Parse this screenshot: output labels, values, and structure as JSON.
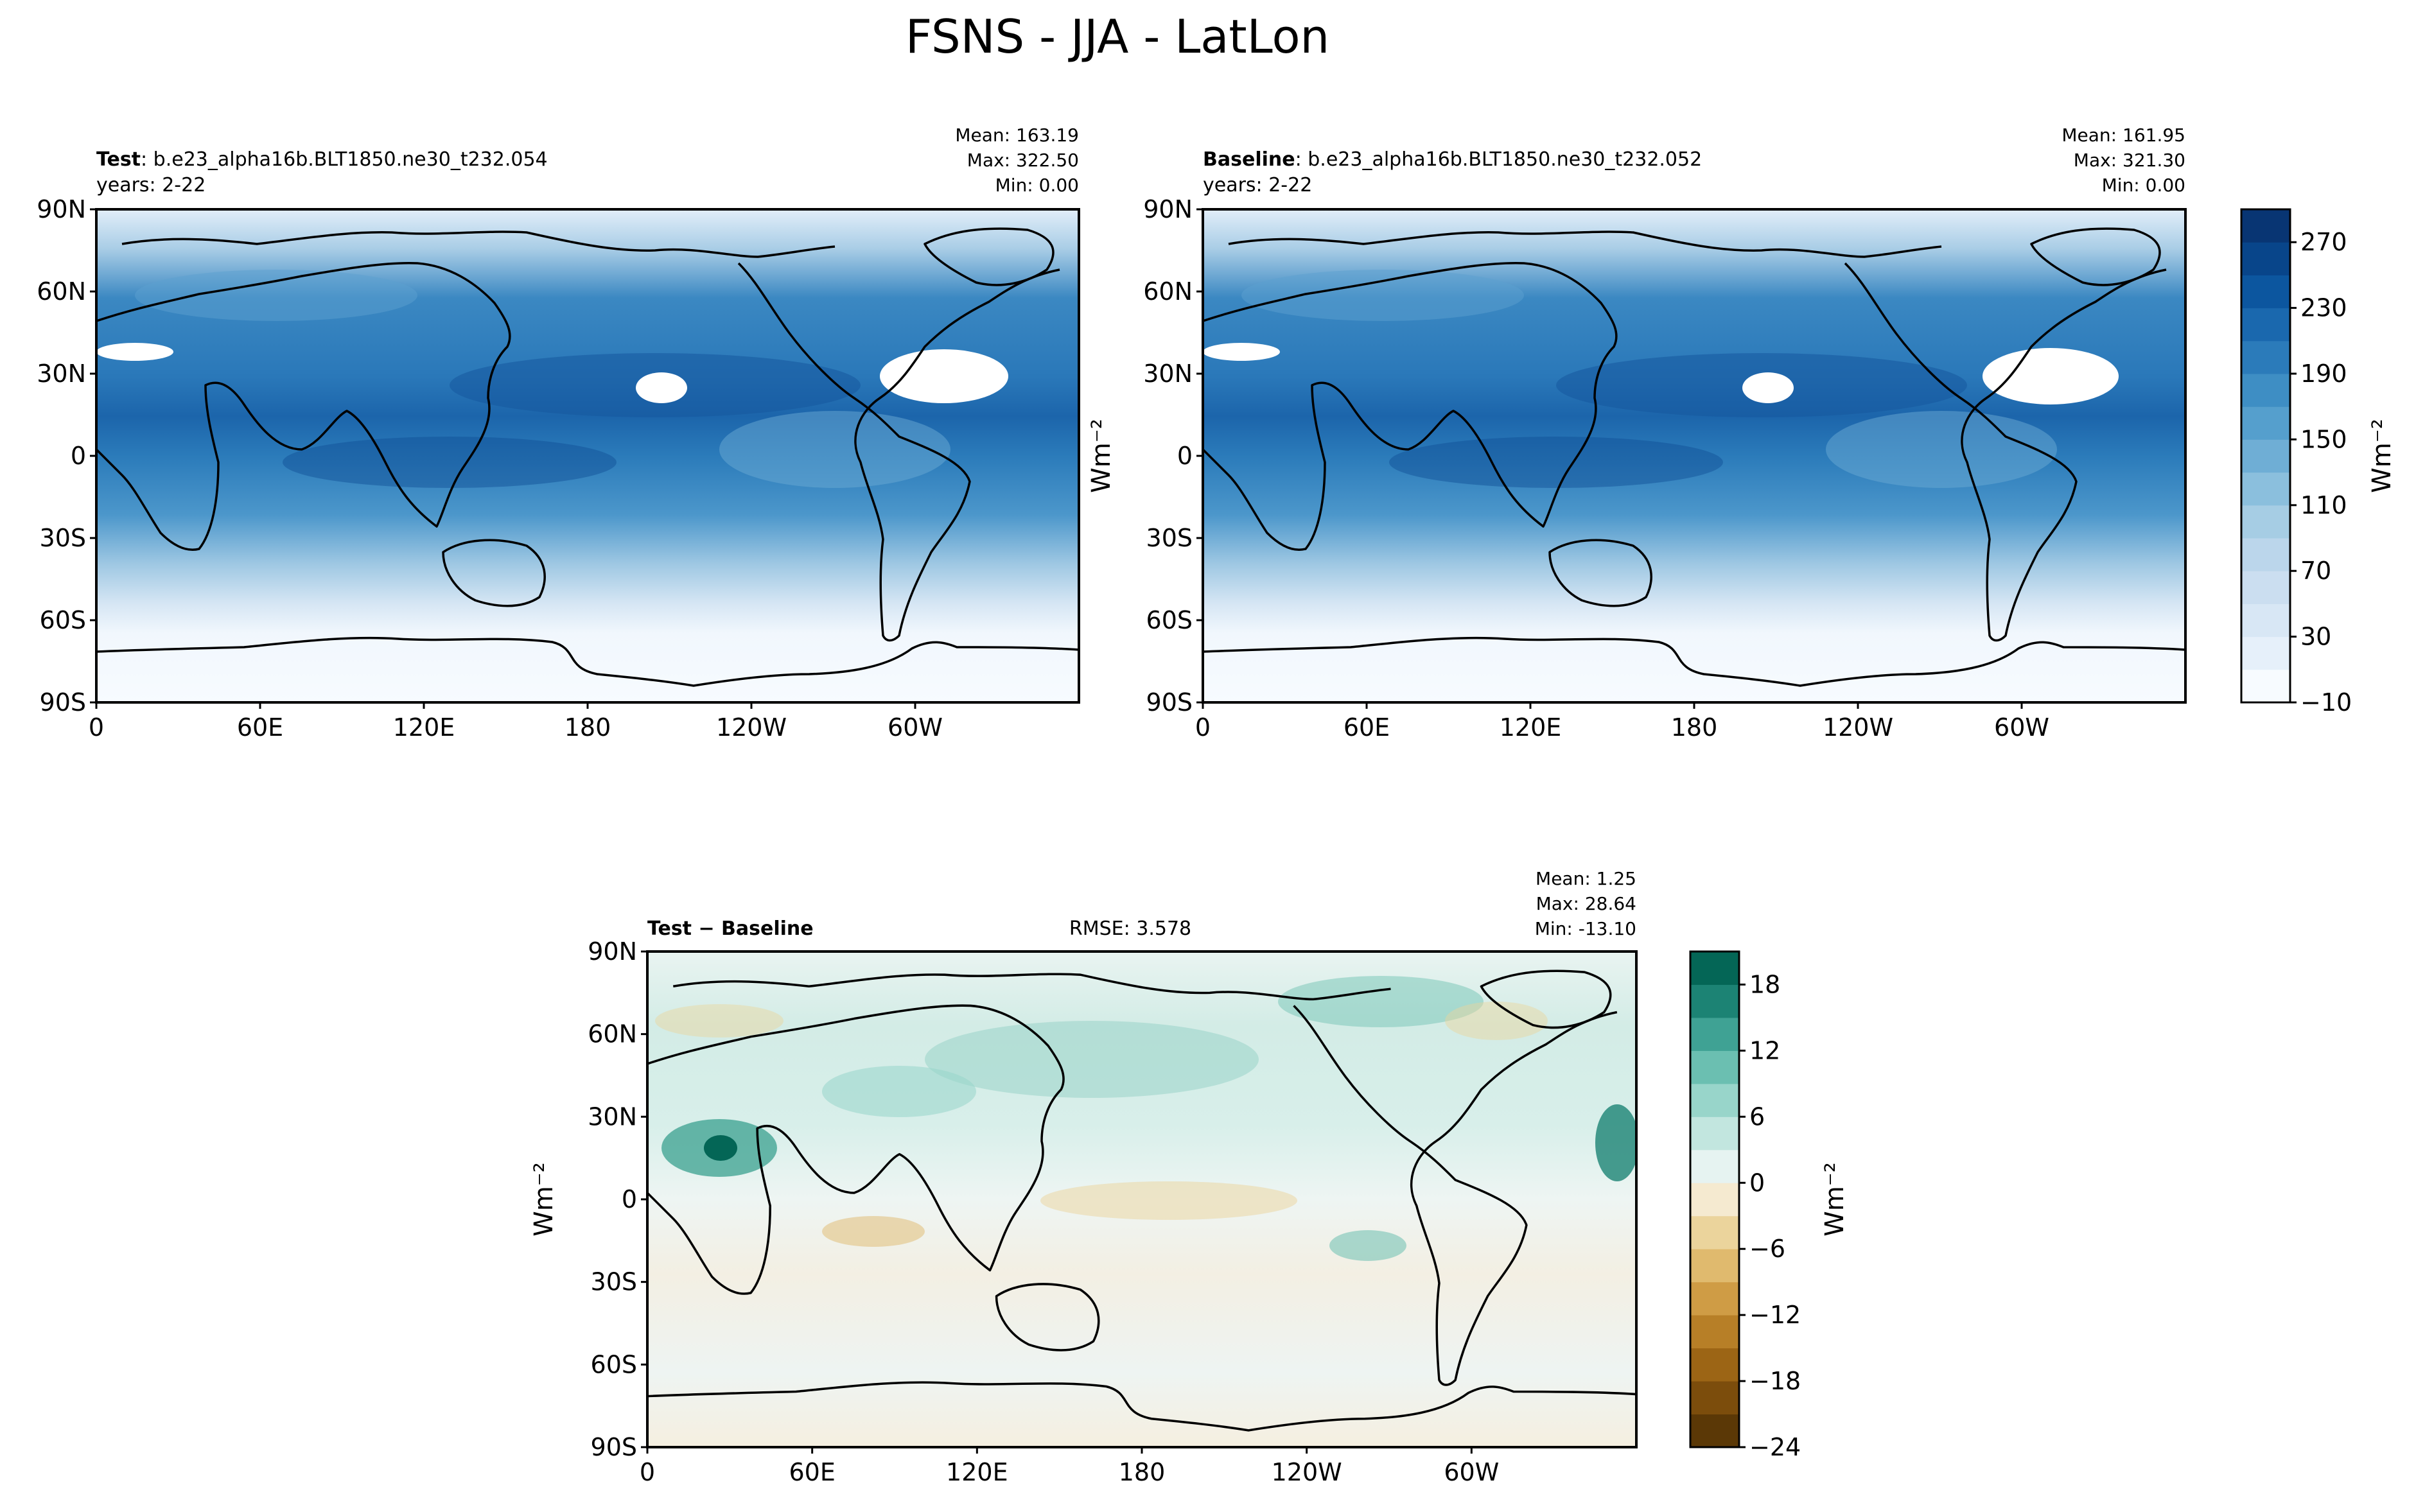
{
  "suptitle": "FSNS - JJA - LatLon",
  "lat_ticks": [
    "90N",
    "60N",
    "30N",
    "0",
    "30S",
    "60S",
    "90S"
  ],
  "lon_ticks": [
    "0",
    "60E",
    "120E",
    "180",
    "120W",
    "60W"
  ],
  "panels": [
    {
      "id": "test",
      "label_bold": "Test",
      "label_rest": ": b.e23_alpha16b.BLT1850.ne30_t232.054",
      "years": "years: 2-22",
      "stats": [
        "Mean: 163.19",
        "Max: 322.50",
        "Min:  0.00"
      ]
    },
    {
      "id": "baseline",
      "label_bold": "Baseline",
      "label_rest": ": b.e23_alpha16b.BLT1850.ne30_t232.052",
      "years": "years: 2-22",
      "stats": [
        "Mean: 161.95",
        "Max: 321.30",
        "Min:  0.00"
      ]
    },
    {
      "id": "diff",
      "label_bold": "Test − Baseline",
      "center_text": "RMSE: 3.578",
      "stats": [
        "Mean:  1.25",
        "Max: 28.64",
        "Min: -13.10"
      ]
    }
  ],
  "colorbars": {
    "field": {
      "label": "Wm⁻²",
      "levels": [
        -10,
        10,
        30,
        50,
        70,
        90,
        110,
        130,
        150,
        170,
        190,
        210,
        230,
        250,
        270,
        290
      ],
      "tick_labels": [
        "270",
        "230",
        "190",
        "150",
        "110",
        "70",
        "30",
        "−10"
      ],
      "colors": [
        "#f7fbff",
        "#e6f0fa",
        "#d8e7f5",
        "#cbdef0",
        "#bbd6eb",
        "#a6cde4",
        "#8bbfdd",
        "#6faed5",
        "#559fcd",
        "#3e8ec4",
        "#2b7bba",
        "#1a68ae",
        "#0c569f",
        "#08458a",
        "#083573"
      ]
    },
    "diff": {
      "label": "Wm⁻²",
      "levels": [
        -24,
        -21,
        -18,
        -15,
        -12,
        -9,
        -6,
        -3,
        0,
        3,
        6,
        9,
        12,
        15,
        18,
        21
      ],
      "tick_labels": [
        "18",
        "12",
        "6",
        "0",
        "−6",
        "−12",
        "−18",
        "−24"
      ],
      "colors": [
        "#5b3806",
        "#7c4d0c",
        "#9c6515",
        "#b77f27",
        "#cf9c45",
        "#e0ba6e",
        "#ebd49c",
        "#f5ead0",
        "#e6f3f1",
        "#c2e6df",
        "#98d5ca",
        "#6bbfb1",
        "#3fa294",
        "#1c8374",
        "#046656"
      ]
    }
  },
  "chart_data": {
    "type": "heatmap",
    "variable": "FSNS",
    "season": "JJA",
    "panels": [
      {
        "name": "Test",
        "case": "b.e23_alpha16b.BLT1850.ne30_t232.054",
        "years": "2-22",
        "mean": 163.19,
        "max": 322.5,
        "min": 0.0
      },
      {
        "name": "Baseline",
        "case": "b.e23_alpha16b.BLT1850.ne30_t232.052",
        "years": "2-22",
        "mean": 161.95,
        "max": 321.3,
        "min": 0.0
      },
      {
        "name": "Test − Baseline",
        "rmse": 3.578,
        "mean": 1.25,
        "max": 28.64,
        "min": -13.1
      }
    ],
    "x_range": [
      0,
      360
    ],
    "y_range": [
      -90,
      90
    ],
    "colorbar_ranges": [
      [
        -10,
        290
      ],
      [
        -24,
        21
      ]
    ],
    "grid": false
  }
}
